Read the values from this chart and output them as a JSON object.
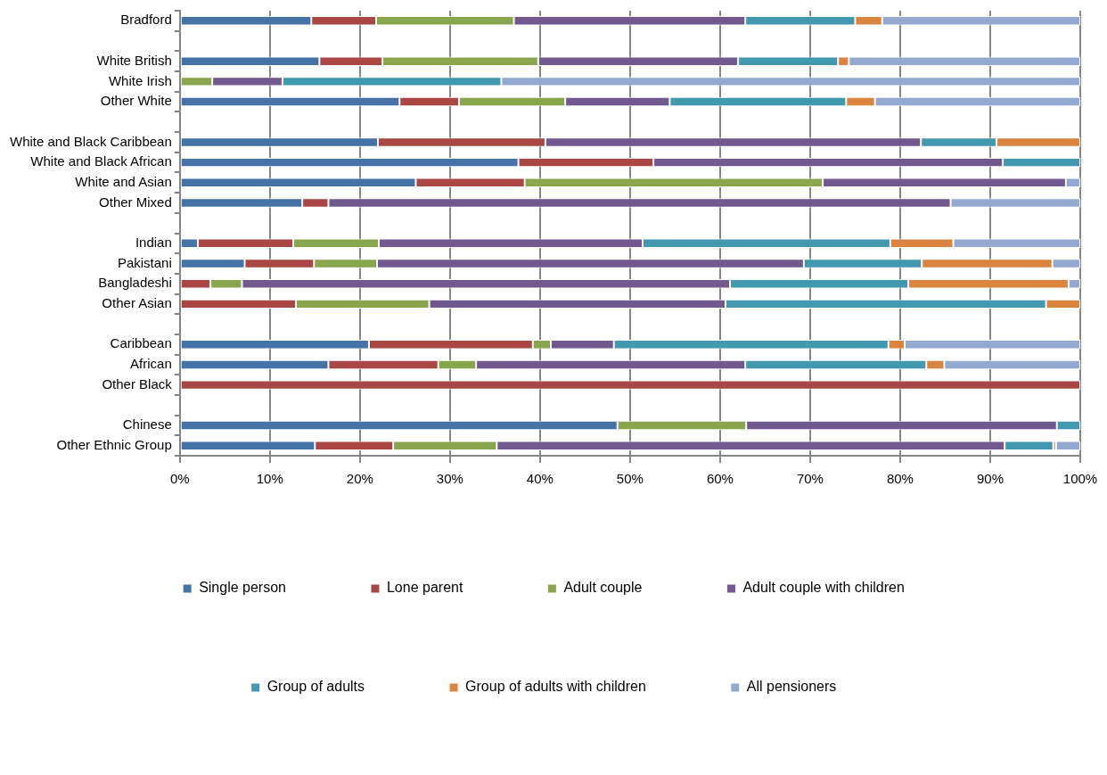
{
  "chart_data": {
    "type": "bar",
    "orientation": "horizontal",
    "stacked": true,
    "categories": [
      "Bradford",
      null,
      "White British",
      "White Irish",
      "Other White",
      null,
      "White and Black Caribbean",
      "White and Black African",
      "White and Asian",
      "Other Mixed",
      null,
      "Indian",
      "Pakistani",
      "Bangladeshi",
      "Other Asian",
      null,
      "Caribbean",
      "African",
      "Other Black",
      null,
      "Chinese",
      "Other Ethnic Group"
    ],
    "series": [
      {
        "name": "Single person",
        "color": "#4572a7",
        "values": [
          14.6,
          null,
          15.5,
          0,
          24.4,
          null,
          22.0,
          37.6,
          26.2,
          13.6,
          null,
          2.0,
          7.2,
          0,
          0,
          null,
          21.0,
          16.5,
          0,
          null,
          48.6,
          15.0
        ]
      },
      {
        "name": "Lone parent",
        "color": "#aa4643",
        "values": [
          7.2,
          null,
          7.0,
          0,
          6.6,
          null,
          18.6,
          15.0,
          12.1,
          2.9,
          null,
          10.6,
          7.7,
          3.4,
          12.9,
          null,
          18.2,
          12.2,
          100,
          null,
          0,
          8.7
        ]
      },
      {
        "name": "Adult couple",
        "color": "#89a54e",
        "values": [
          15.3,
          null,
          17.3,
          3.6,
          11.8,
          null,
          0,
          0,
          33.1,
          0,
          null,
          9.5,
          7.0,
          3.5,
          14.8,
          null,
          2.0,
          4.2,
          0,
          null,
          14.3,
          11.5
        ]
      },
      {
        "name": "Adult couple with children",
        "color": "#71588f",
        "values": [
          25.7,
          null,
          22.2,
          7.8,
          11.6,
          null,
          41.7,
          38.8,
          27.0,
          69.1,
          null,
          29.3,
          47.4,
          54.2,
          32.9,
          null,
          7.0,
          29.9,
          0,
          null,
          34.5,
          56.4
        ]
      },
      {
        "name": "Group of adults",
        "color": "#4198af",
        "values": [
          12.2,
          null,
          11.1,
          24.3,
          19.6,
          null,
          8.4,
          8.6,
          0,
          0,
          null,
          27.5,
          13.1,
          19.8,
          35.6,
          null,
          30.5,
          20.1,
          0,
          null,
          2.6,
          5.4
        ]
      },
      {
        "name": "Group of adults with children",
        "color": "#db843d",
        "values": [
          3.0,
          null,
          1.2,
          0,
          3.2,
          null,
          9.3,
          0,
          0,
          0,
          null,
          7.0,
          14.5,
          17.8,
          3.8,
          null,
          1.8,
          2.0,
          0,
          null,
          0,
          0.3
        ]
      },
      {
        "name": "All pensioners",
        "color": "#93a9cf",
        "values": [
          22.0,
          null,
          25.7,
          64.3,
          22.8,
          null,
          0,
          0,
          1.6,
          14.4,
          null,
          14.1,
          3.1,
          1.3,
          0,
          null,
          19.5,
          15.1,
          0,
          null,
          0,
          2.7
        ]
      }
    ],
    "xlim": [
      0,
      100
    ],
    "xticks": [
      {
        "value": 0,
        "label": "0%"
      },
      {
        "value": 10,
        "label": "10%"
      },
      {
        "value": 20,
        "label": "20%"
      },
      {
        "value": 30,
        "label": "30%"
      },
      {
        "value": 40,
        "label": "40%"
      },
      {
        "value": 50,
        "label": "50%"
      },
      {
        "value": 60,
        "label": "60%"
      },
      {
        "value": 70,
        "label": "70%"
      },
      {
        "value": 80,
        "label": "80%"
      },
      {
        "value": 90,
        "label": "90%"
      },
      {
        "value": 100,
        "label": "100%"
      }
    ],
    "grid": "x",
    "legend": "bottom"
  }
}
